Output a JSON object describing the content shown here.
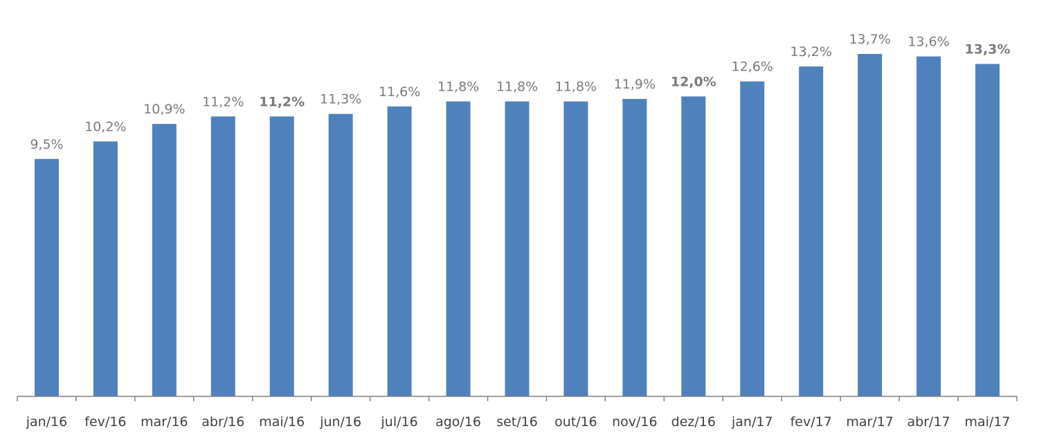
{
  "chart_data": {
    "type": "bar",
    "title": "",
    "xlabel": "",
    "ylabel": "",
    "categories": [
      "jan/16",
      "fev/16",
      "mar/16",
      "abr/16",
      "mai/16",
      "jun/16",
      "jul/16",
      "ago/16",
      "set/16",
      "out/16",
      "nov/16",
      "dez/16",
      "jan/17",
      "fev/17",
      "mar/17",
      "abr/17",
      "mai/17"
    ],
    "values": [
      9.5,
      10.2,
      10.9,
      11.2,
      11.2,
      11.3,
      11.6,
      11.8,
      11.8,
      11.8,
      11.9,
      12.0,
      12.6,
      13.2,
      13.7,
      13.6,
      13.3
    ],
    "value_labels": [
      "9,5%",
      "10,2%",
      "10,9%",
      "11,2%",
      "11,2%",
      "11,3%",
      "11,6%",
      "11,8%",
      "11,8%",
      "11,8%",
      "11,9%",
      "12,0%",
      "12,6%",
      "13,2%",
      "13,7%",
      "13,6%",
      "13,3%"
    ],
    "bold_labels": [
      false,
      false,
      false,
      false,
      true,
      false,
      false,
      false,
      false,
      false,
      false,
      true,
      false,
      false,
      false,
      false,
      true
    ],
    "ylim": [
      0,
      13.7
    ],
    "grid": false,
    "legend": "none",
    "colors": {
      "bar": "#4f81bd",
      "axis": "#7f7f7f",
      "value_label": "#7a7a7a",
      "tick_label": "#404040"
    }
  }
}
